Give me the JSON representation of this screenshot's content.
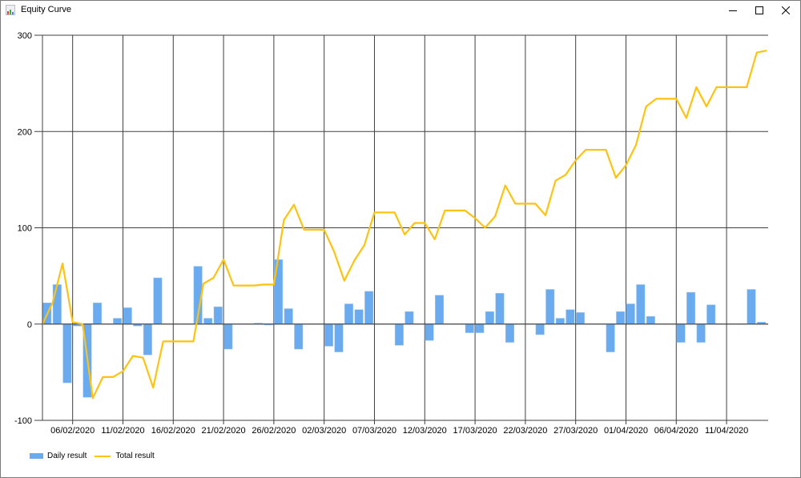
{
  "window": {
    "title": "Equity Curve",
    "controls": [
      "minimize",
      "maximize",
      "close"
    ]
  },
  "colors": {
    "bar": "#6aabef",
    "line": "#ffc20e",
    "grid": "#404040"
  },
  "legend": {
    "bar_label": "Daily result",
    "line_label": "Total result"
  },
  "chart_data": {
    "type": "bar+line",
    "title": "Equity Curve",
    "xlabel": "",
    "ylabel": "",
    "ylim": [
      -100,
      300
    ],
    "yticks": [
      -100,
      0,
      100,
      200,
      300
    ],
    "xticks": [
      "06/02/2020",
      "11/02/2020",
      "16/02/2020",
      "21/02/2020",
      "26/02/2020",
      "02/03/2020",
      "07/03/2020",
      "12/03/2020",
      "17/03/2020",
      "22/03/2020",
      "27/03/2020",
      "01/04/2020",
      "06/04/2020",
      "11/04/2020"
    ],
    "x_range": [
      "03/02/2020",
      "15/04/2020"
    ],
    "grid": true,
    "legend_position": "bottom-left",
    "series": [
      {
        "name": "Daily result",
        "type": "bar",
        "values": [
          22,
          41,
          -61,
          -2,
          -76,
          22,
          0,
          6,
          17,
          -2,
          -32,
          48,
          0,
          0,
          0,
          60,
          6,
          18,
          -26,
          0,
          0,
          1,
          -1,
          67,
          16,
          -26,
          0,
          0,
          -23,
          -29,
          21,
          15,
          34,
          0,
          0,
          -22,
          13,
          0,
          -17,
          30,
          0,
          0,
          -9,
          -9,
          13,
          32,
          -19,
          0,
          0,
          -11,
          36,
          6,
          15,
          12,
          0,
          0,
          -29,
          13,
          21,
          41,
          8,
          0,
          0,
          -19,
          33,
          -19,
          20,
          0,
          0,
          0,
          36,
          2
        ]
      },
      {
        "name": "Total result",
        "type": "line",
        "values": [
          0,
          22,
          63,
          2,
          0,
          -77,
          -55,
          -55,
          -49,
          -33,
          -35,
          -66,
          -18,
          -18,
          -18,
          -18,
          42,
          48,
          67,
          40,
          40,
          40,
          41,
          41,
          108,
          124,
          98,
          98,
          98,
          75,
          45,
          66,
          82,
          116,
          116,
          116,
          93,
          105,
          105,
          88,
          118,
          118,
          118,
          110,
          100,
          112,
          144,
          125,
          125,
          125,
          113,
          149,
          155,
          170,
          181,
          181,
          181,
          152,
          165,
          186,
          226,
          234,
          234,
          234,
          214,
          246,
          226,
          246,
          246,
          246,
          246,
          282,
          284
        ]
      }
    ]
  }
}
